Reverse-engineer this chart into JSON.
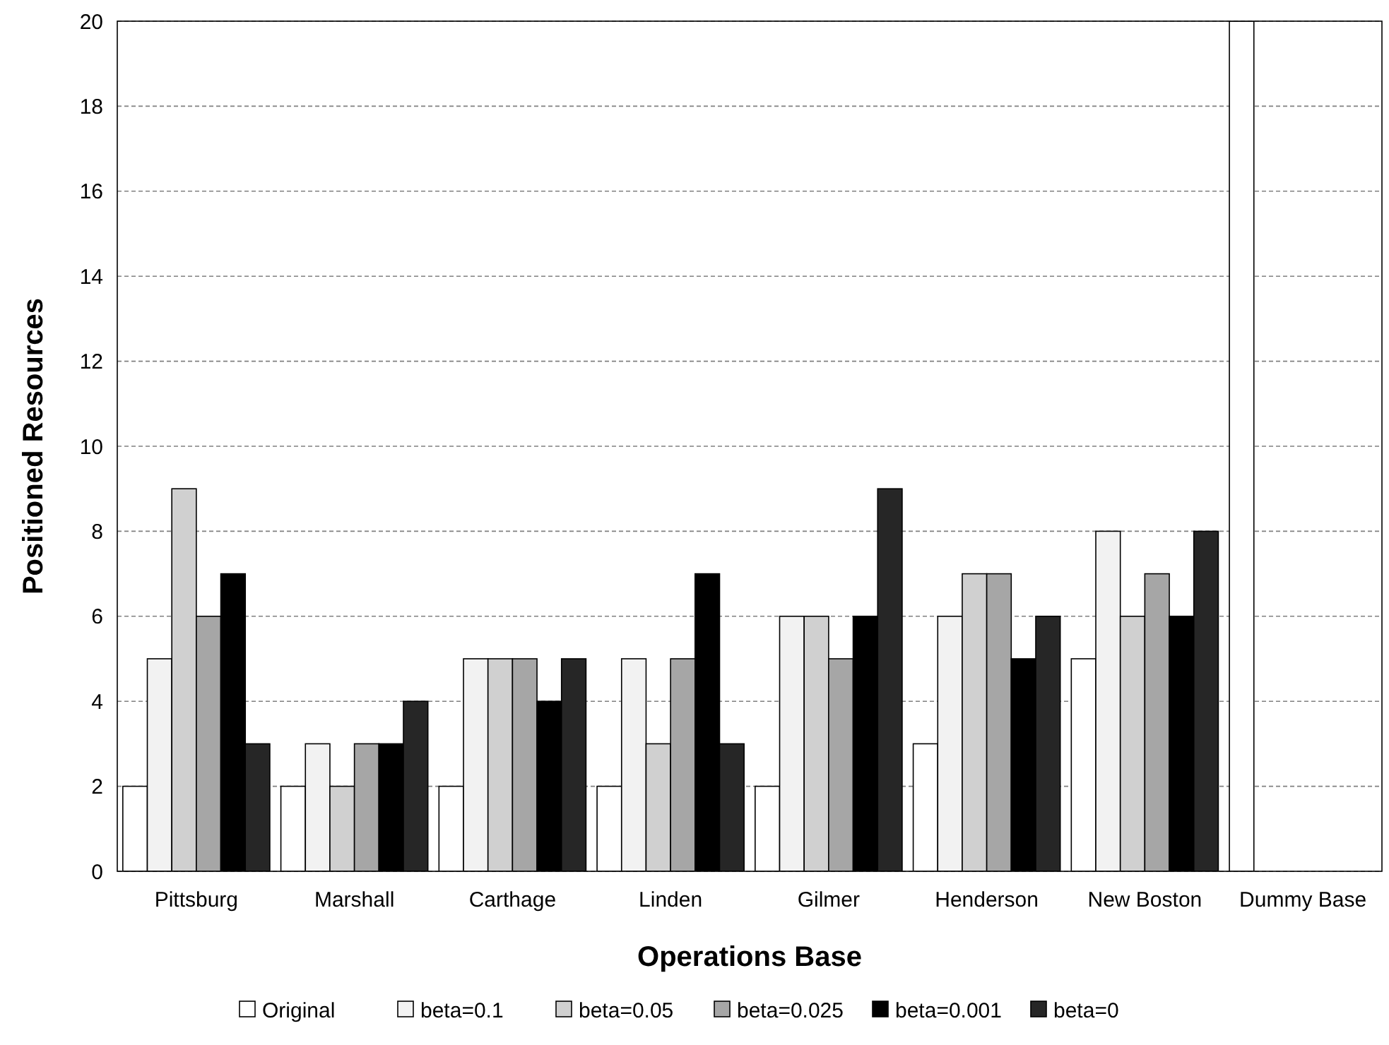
{
  "chart_data": {
    "type": "bar",
    "xlabel": "Operations Base",
    "ylabel": "Positioned Resources",
    "categories": [
      "Pittsburg",
      "Marshall",
      "Carthage",
      "Linden",
      "Gilmer",
      "Henderson",
      "New Boston",
      "Dummy Base"
    ],
    "series": [
      {
        "name": "Original",
        "color": "#ffffff",
        "values": [
          2,
          2,
          2,
          2,
          2,
          3,
          5,
          20
        ]
      },
      {
        "name": "beta=0.1",
        "color": "#f2f2f2",
        "values": [
          5,
          3,
          5,
          5,
          6,
          6,
          8,
          0
        ]
      },
      {
        "name": "beta=0.05",
        "color": "#d0d0d0",
        "values": [
          9,
          2,
          5,
          3,
          6,
          7,
          6,
          0
        ]
      },
      {
        "name": "beta=0.025",
        "color": "#a6a6a6",
        "values": [
          6,
          3,
          5,
          5,
          5,
          7,
          7,
          0
        ]
      },
      {
        "name": "beta=0.001",
        "color": "#000000",
        "values": [
          7,
          3,
          4,
          7,
          6,
          5,
          6,
          0
        ]
      },
      {
        "name": "beta=0",
        "color": "#262626",
        "values": [
          3,
          4,
          5,
          3,
          9,
          6,
          8,
          0
        ]
      }
    ],
    "ylim": [
      0,
      20
    ],
    "yticks": [
      0,
      2,
      4,
      6,
      8,
      10,
      12,
      14,
      16,
      18,
      20
    ],
    "grid": "y",
    "legend": "bottom"
  }
}
